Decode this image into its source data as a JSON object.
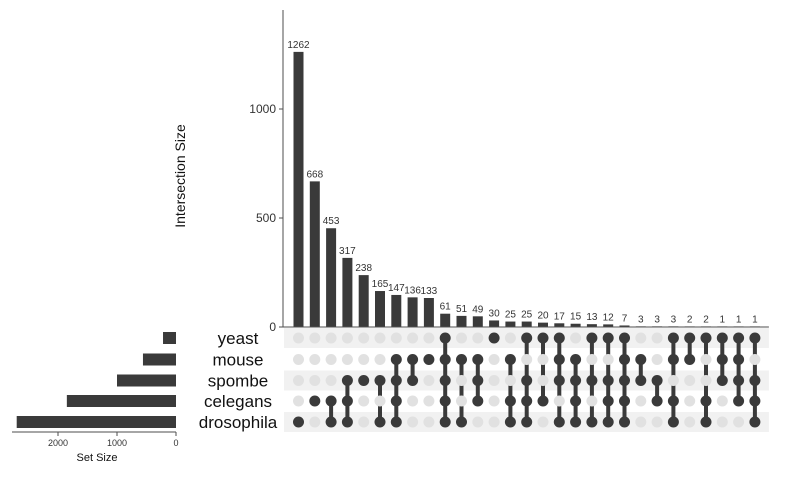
{
  "chart_data": {
    "type": "bar",
    "subtype": "upset",
    "ylabel": "Intersection Size",
    "set_size_label": "Set Size",
    "yticks": [
      0,
      500,
      1000
    ],
    "set_size_ticks": [
      2000,
      1000,
      0
    ],
    "sets": [
      {
        "name": "yeast",
        "size": 220
      },
      {
        "name": "mouse",
        "size": 560
      },
      {
        "name": "spombe",
        "size": 1000
      },
      {
        "name": "celegans",
        "size": 1850
      },
      {
        "name": "drosophila",
        "size": 2700
      }
    ],
    "intersections": [
      {
        "value": 1262,
        "label": "1262",
        "sets": [
          "drosophila"
        ]
      },
      {
        "value": 668,
        "label": "668",
        "sets": [
          "celegans"
        ]
      },
      {
        "value": 453,
        "label": "453",
        "sets": [
          "drosophila",
          "celegans"
        ]
      },
      {
        "value": 317,
        "label": "317",
        "sets": [
          "drosophila",
          "celegans",
          "spombe"
        ]
      },
      {
        "value": 238,
        "label": "238",
        "sets": [
          "spombe"
        ]
      },
      {
        "value": 165,
        "label": "165",
        "sets": [
          "drosophila",
          "spombe"
        ]
      },
      {
        "value": 147,
        "label": "147",
        "sets": [
          "drosophila",
          "celegans",
          "spombe",
          "mouse"
        ]
      },
      {
        "value": 136,
        "label": "136",
        "sets": [
          "spombe",
          "mouse"
        ]
      },
      {
        "value": 133,
        "label": "133",
        "sets": [
          "mouse"
        ]
      },
      {
        "value": 61,
        "label": "61",
        "sets": [
          "drosophila",
          "celegans",
          "spombe",
          "mouse",
          "yeast"
        ]
      },
      {
        "value": 51,
        "label": "51",
        "sets": [
          "drosophila",
          "mouse"
        ]
      },
      {
        "value": 49,
        "label": "49",
        "sets": [
          "celegans",
          "spombe",
          "mouse"
        ]
      },
      {
        "value": 30,
        "label": "30",
        "sets": [
          "yeast"
        ]
      },
      {
        "value": 25,
        "label": "25",
        "sets": [
          "drosophila",
          "celegans",
          "mouse"
        ]
      },
      {
        "value": 25,
        "label": "25",
        "sets": [
          "drosophila",
          "celegans",
          "spombe",
          "yeast"
        ]
      },
      {
        "value": 20,
        "label": "20",
        "sets": [
          "celegans",
          "yeast"
        ]
      },
      {
        "value": 17,
        "label": "17",
        "sets": [
          "drosophila",
          "spombe",
          "mouse",
          "yeast"
        ]
      },
      {
        "value": 15,
        "label": "15",
        "sets": [
          "drosophila",
          "celegans",
          "spombe",
          "mouse"
        ]
      },
      {
        "value": 13,
        "label": "13",
        "sets": [
          "drosophila",
          "spombe",
          "yeast"
        ]
      },
      {
        "value": 12,
        "label": "12",
        "sets": [
          "drosophila",
          "celegans",
          "spombe",
          "yeast"
        ]
      },
      {
        "value": 7,
        "label": "7",
        "sets": [
          "drosophila",
          "celegans",
          "spombe",
          "mouse",
          "yeast"
        ]
      },
      {
        "value": 3,
        "label": "3",
        "sets": [
          "spombe",
          "mouse"
        ]
      },
      {
        "value": 3,
        "label": "3",
        "sets": [
          "celegans",
          "spombe"
        ]
      },
      {
        "value": 3,
        "label": "3",
        "sets": [
          "drosophila",
          "celegans",
          "mouse",
          "yeast"
        ]
      },
      {
        "value": 2,
        "label": "2",
        "sets": [
          "mouse",
          "yeast"
        ]
      },
      {
        "value": 2,
        "label": "2",
        "sets": [
          "drosophila",
          "celegans",
          "yeast"
        ]
      },
      {
        "value": 1,
        "label": "1",
        "sets": [
          "spombe",
          "mouse",
          "yeast"
        ]
      },
      {
        "value": 1,
        "label": "1",
        "sets": [
          "celegans",
          "spombe",
          "mouse",
          "yeast"
        ]
      },
      {
        "value": 1,
        "label": "1",
        "sets": [
          "drosophila",
          "celegans",
          "spombe",
          "yeast"
        ]
      }
    ],
    "colors": {
      "bar": "#3a3a3a",
      "dot_active": "#3a3a3a",
      "dot_inactive": "#e1e1e1",
      "stripe": "#f1f1f1",
      "axis": "#4d4d4d",
      "text": "#333333"
    },
    "grid": false
  }
}
